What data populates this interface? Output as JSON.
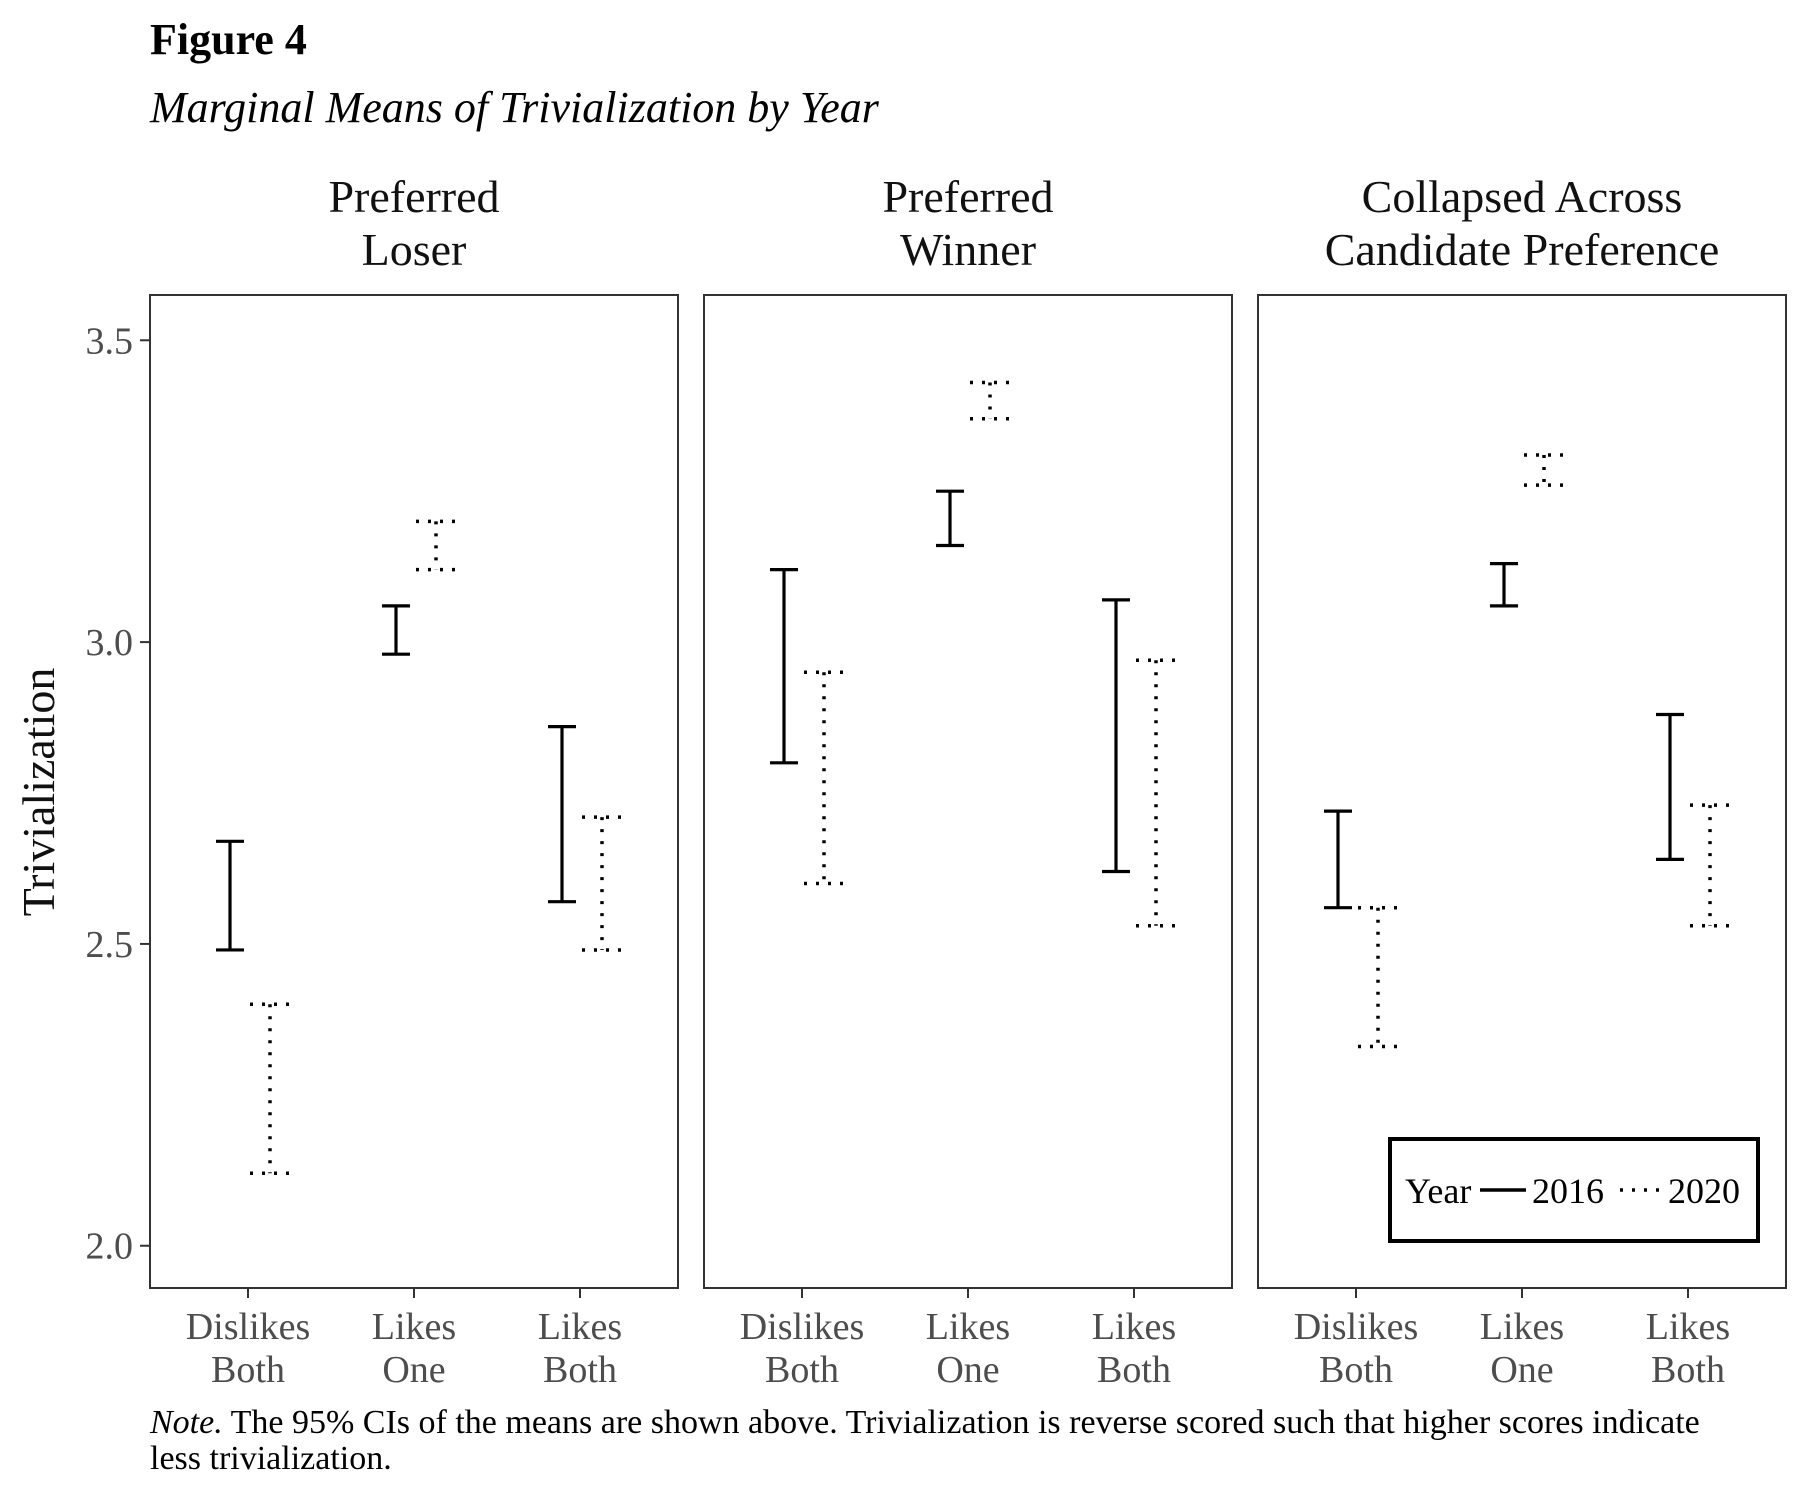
{
  "figure": {
    "label": "Figure 4",
    "title": "Marginal Means of Trivialization by Year"
  },
  "note": {
    "label": "Note.",
    "text": " The 95% CIs of the means are shown above. Trivialization is reverse scored such that higher scores indicate less trivialization."
  },
  "chart_data": {
    "type": "errorbar",
    "ylabel": "Trivialization",
    "ylim": [
      1.93,
      3.575
    ],
    "yticks": [
      "2.0",
      "2.5",
      "3.0",
      "3.5"
    ],
    "categories": [
      [
        "Dislikes",
        "Both"
      ],
      [
        "Likes",
        "One"
      ],
      [
        "Likes",
        "Both"
      ]
    ],
    "legend": {
      "title": "Year",
      "position": "bottom-right of third panel",
      "entries": [
        {
          "name": "2016",
          "style": "solid"
        },
        {
          "name": "2020",
          "style": "dotted"
        }
      ]
    },
    "panels": [
      {
        "title": [
          "Preferred",
          "Loser"
        ],
        "series": [
          {
            "name": "2016",
            "intervals": [
              [
                2.49,
                2.67
              ],
              [
                2.98,
                3.06
              ],
              [
                2.57,
                2.86
              ]
            ]
          },
          {
            "name": "2020",
            "intervals": [
              [
                2.12,
                2.4
              ],
              [
                3.12,
                3.2
              ],
              [
                2.49,
                2.71
              ]
            ]
          }
        ]
      },
      {
        "title": [
          "Preferred",
          "Winner"
        ],
        "series": [
          {
            "name": "2016",
            "intervals": [
              [
                2.8,
                3.12
              ],
              [
                3.16,
                3.25
              ],
              [
                2.62,
                3.07
              ]
            ]
          },
          {
            "name": "2020",
            "intervals": [
              [
                2.6,
                2.95
              ],
              [
                3.37,
                3.43
              ],
              [
                2.53,
                2.97
              ]
            ]
          }
        ]
      },
      {
        "title": [
          "Collapsed Across",
          "Candidate Preference"
        ],
        "series": [
          {
            "name": "2016",
            "intervals": [
              [
                2.56,
                2.72
              ],
              [
                3.06,
                3.13
              ],
              [
                2.64,
                2.88
              ]
            ]
          },
          {
            "name": "2020",
            "intervals": [
              [
                2.33,
                2.56
              ],
              [
                3.26,
                3.31
              ],
              [
                2.53,
                2.73
              ]
            ]
          }
        ]
      }
    ]
  }
}
